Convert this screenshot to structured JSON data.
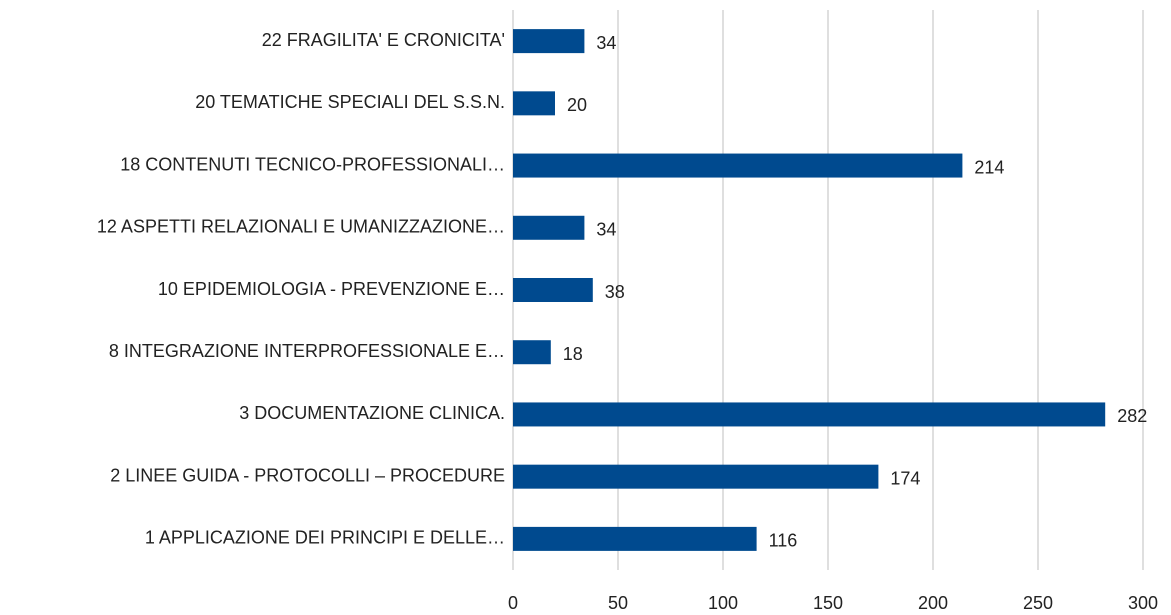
{
  "chart_data": {
    "type": "bar",
    "orientation": "horizontal",
    "categories": [
      "22 FRAGILITA' E CRONICITA'",
      "20 TEMATICHE SPECIALI DEL S.S.N.",
      "18 CONTENUTI TECNICO-PROFESSIONALI…",
      "12 ASPETTI RELAZIONALI E UMANIZZAZIONE…",
      "10 EPIDEMIOLOGIA - PREVENZIONE E…",
      "8 INTEGRAZIONE INTERPROFESSIONALE E…",
      "3 DOCUMENTAZIONE CLINICA.",
      "2 LINEE GUIDA - PROTOCOLLI – PROCEDURE",
      "1 APPLICAZIONE DEI PRINCIPI E DELLE…"
    ],
    "values": [
      34,
      20,
      214,
      34,
      38,
      18,
      282,
      174,
      116
    ],
    "color": "#004a8f",
    "xlim": [
      0,
      300
    ],
    "xticks": [
      0,
      50,
      100,
      150,
      200,
      250,
      300
    ],
    "grid": true
  }
}
